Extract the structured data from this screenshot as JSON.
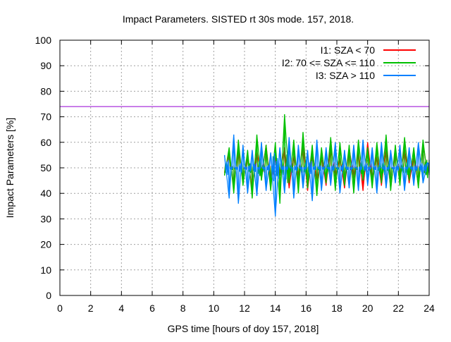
{
  "chart_data": {
    "type": "line",
    "title": "Impact Parameters. SISTED rt 30s mode. 157, 2018.",
    "xlabel": "GPS time [hours of doy 157, 2018]",
    "ylabel": "Impact Parameters [%]",
    "xlim": [
      0,
      24
    ],
    "ylim": [
      0,
      100
    ],
    "xticks": [
      "0",
      "2",
      "4",
      "6",
      "8",
      "10",
      "12",
      "14",
      "16",
      "18",
      "20",
      "22",
      "24"
    ],
    "yticks": [
      "0",
      "10",
      "20",
      "30",
      "40",
      "50",
      "60",
      "70",
      "80",
      "90",
      "100"
    ],
    "grid": true,
    "legend_position": "top-right",
    "reference_line": {
      "y": 74,
      "color": "#9400d3"
    },
    "x_start": 10.7,
    "x_step": 0.3,
    "series": [
      {
        "name": "I1: SZA < 70",
        "color": "#ff0000",
        "values": [
          48,
          56,
          42,
          58,
          44,
          55,
          41,
          57,
          46,
          59,
          43,
          54,
          47,
          58,
          42,
          56,
          45,
          60,
          41,
          57,
          44,
          55,
          43,
          59,
          46,
          54,
          42,
          58,
          45,
          57,
          41,
          60,
          44,
          56,
          43,
          59,
          42,
          57,
          46,
          58,
          44,
          55,
          43,
          60,
          47
        ]
      },
      {
        "name": "I2: 70 <= SZA <= 110",
        "color": "#00c000",
        "values": [
          47,
          58,
          40,
          61,
          43,
          57,
          38,
          63,
          45,
          59,
          41,
          60,
          36,
          71,
          44,
          61,
          40,
          64,
          42,
          59,
          39,
          58,
          44,
          62,
          41,
          60,
          43,
          59,
          40,
          61,
          45,
          58,
          42,
          60,
          44,
          63,
          41,
          59,
          43,
          62,
          45,
          58,
          42,
          61,
          46
        ]
      },
      {
        "name": "I3: SZA > 110",
        "color": "#0080ff",
        "values": [
          55,
          38,
          63,
          36,
          59,
          40,
          57,
          39,
          60,
          41,
          56,
          31,
          58,
          40,
          62,
          38,
          59,
          42,
          57,
          37,
          61,
          41,
          58,
          43,
          60,
          40,
          57,
          42,
          59,
          41,
          61,
          43,
          58,
          40,
          60,
          42,
          57,
          44,
          59,
          41,
          58,
          43,
          60,
          44,
          52
        ]
      }
    ]
  }
}
